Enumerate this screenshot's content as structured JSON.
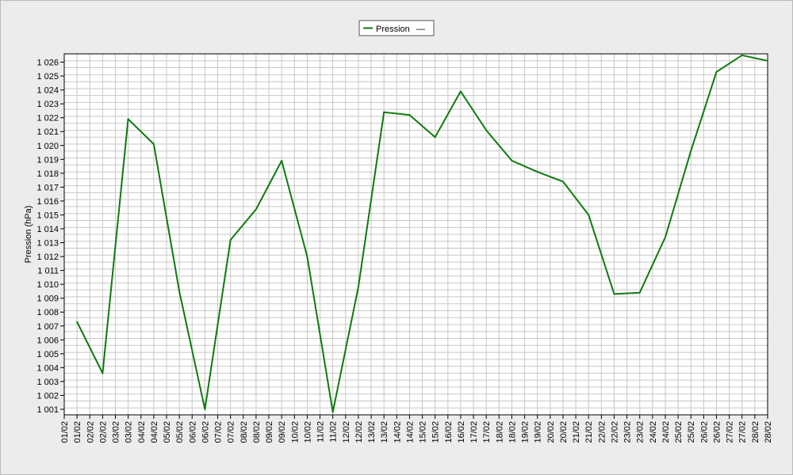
{
  "colors": {
    "series": "#0f7a0f",
    "plot_background": "#ffffff",
    "grid": "#c7c7c7",
    "frame": "#000000",
    "page_background": "#ececec"
  },
  "chart_data": {
    "type": "line",
    "title": "",
    "xlabel": "",
    "ylabel": "Pression (hPa)",
    "grid": true,
    "legend_position": "top-center",
    "legend": {
      "label": "Pression",
      "marker_text": "—"
    },
    "ylim": [
      1000.6,
      1026.6
    ],
    "y_ticks": [
      1001,
      1002,
      1003,
      1004,
      1005,
      1006,
      1007,
      1008,
      1009,
      1010,
      1011,
      1012,
      1013,
      1014,
      1015,
      1016,
      1017,
      1018,
      1019,
      1020,
      1021,
      1022,
      1023,
      1024,
      1025,
      1026
    ],
    "y_tick_labels": [
      "1 001",
      "1 002",
      "1 003",
      "1 004",
      "1 005",
      "1 006",
      "1 007",
      "1 008",
      "1 009",
      "1 010",
      "1 011",
      "1 012",
      "1 013",
      "1 014",
      "1 015",
      "1 016",
      "1 017",
      "1 018",
      "1 019",
      "1 020",
      "1 021",
      "1 022",
      "1 023",
      "1 024",
      "1 025",
      "1 026"
    ],
    "x_tick_labels": [
      "01/02",
      "01/02",
      "02/02",
      "02/02",
      "03/02",
      "03/02",
      "04/02",
      "04/02",
      "05/02",
      "05/02",
      "06/02",
      "06/02",
      "07/02",
      "07/02",
      "08/02",
      "08/02",
      "09/02",
      "09/02",
      "10/02",
      "10/02",
      "11/02",
      "11/02",
      "12/02",
      "12/02",
      "13/02",
      "13/02",
      "14/02",
      "14/02",
      "15/02",
      "15/02",
      "16/02",
      "16/02",
      "17/02",
      "17/02",
      "18/02",
      "18/02",
      "19/02",
      "19/02",
      "20/02",
      "20/02",
      "21/02",
      "21/02",
      "22/02",
      "22/02",
      "23/02",
      "23/02",
      "24/02",
      "24/02",
      "25/02",
      "25/02",
      "26/02",
      "26/02",
      "27/02",
      "27/02",
      "28/02",
      "28/02"
    ],
    "series": [
      {
        "name": "Pression",
        "x": [
          "01/02",
          "02/02",
          "03/02",
          "04/02",
          "05/02",
          "06/02",
          "07/02",
          "08/02",
          "09/02",
          "10/02",
          "11/02",
          "12/02",
          "13/02",
          "14/02",
          "15/02",
          "16/02",
          "17/02",
          "18/02",
          "19/02",
          "20/02",
          "21/02",
          "22/02",
          "23/02",
          "24/02",
          "25/02",
          "26/02",
          "27/02",
          "28/02"
        ],
        "values": [
          1007.3,
          1003.6,
          1021.9,
          1020.1,
          1009.5,
          1001.0,
          1013.2,
          1015.4,
          1018.9,
          1012.0,
          1000.8,
          1009.8,
          1022.4,
          1022.2,
          1020.6,
          1023.9,
          1021.1,
          1018.9,
          1018.1,
          1017.4,
          1015.0,
          1009.3,
          1009.4,
          1013.4,
          1019.6,
          1025.3,
          1026.5,
          1026.1
        ]
      }
    ]
  }
}
